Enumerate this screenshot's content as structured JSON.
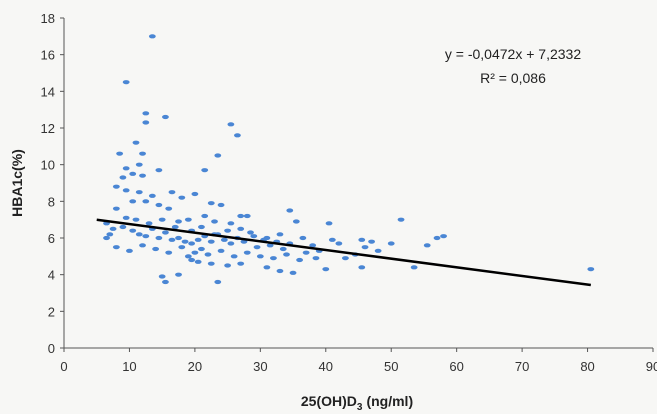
{
  "chart_data": {
    "type": "scatter",
    "title": "",
    "xlabel": "25(OH)D",
    "xlabel_subscript": "3",
    "xlabel_unit": "(ng/ml)",
    "ylabel": "HBA1c(%)",
    "xlim": [
      0,
      90
    ],
    "ylim": [
      0,
      18
    ],
    "x_ticks": [
      0,
      10,
      20,
      30,
      40,
      50,
      60,
      70,
      80,
      90
    ],
    "y_ticks": [
      0,
      2,
      4,
      6,
      8,
      10,
      12,
      14,
      16,
      18
    ],
    "grid": false,
    "legend": "none",
    "colors": {
      "points": "#4a86d4",
      "trendline": "#000000"
    },
    "annotations": {
      "equation": "y = -0,0472x + 7,2332",
      "r2": "R² = 0,086"
    },
    "trendline": {
      "slope": -0.0472,
      "intercept": 7.2332,
      "x_range": [
        5,
        80.5
      ]
    },
    "points": [
      [
        13.5,
        17.0
      ],
      [
        9.5,
        14.5
      ],
      [
        12.5,
        12.8
      ],
      [
        15.5,
        12.6
      ],
      [
        12.5,
        12.3
      ],
      [
        25.5,
        12.2
      ],
      [
        26.5,
        11.6
      ],
      [
        11.0,
        11.2
      ],
      [
        12.0,
        10.6
      ],
      [
        8.5,
        10.6
      ],
      [
        23.5,
        10.5
      ],
      [
        11.5,
        10.0
      ],
      [
        9.5,
        9.8
      ],
      [
        14.5,
        9.7
      ],
      [
        21.5,
        9.7
      ],
      [
        10.5,
        9.5
      ],
      [
        9.0,
        9.3
      ],
      [
        12.0,
        9.4
      ],
      [
        8.0,
        8.8
      ],
      [
        9.5,
        8.6
      ],
      [
        11.5,
        8.5
      ],
      [
        13.5,
        8.3
      ],
      [
        16.5,
        8.5
      ],
      [
        20.0,
        8.4
      ],
      [
        18.0,
        8.2
      ],
      [
        10.5,
        8.0
      ],
      [
        12.5,
        8.0
      ],
      [
        14.5,
        7.8
      ],
      [
        22.5,
        7.9
      ],
      [
        24.0,
        7.8
      ],
      [
        16.0,
        7.6
      ],
      [
        8.0,
        7.6
      ],
      [
        34.5,
        7.5
      ],
      [
        27.0,
        7.2
      ],
      [
        28.0,
        7.2
      ],
      [
        21.5,
        7.2
      ],
      [
        19.0,
        7.0
      ],
      [
        17.5,
        6.9
      ],
      [
        23.0,
        6.9
      ],
      [
        25.5,
        6.8
      ],
      [
        40.5,
        6.8
      ],
      [
        45.5,
        5.9
      ],
      [
        35.5,
        6.9
      ],
      [
        51.5,
        7.0
      ],
      [
        57.0,
        6.0
      ],
      [
        58.0,
        6.1
      ],
      [
        6.5,
        6.8
      ],
      [
        7.5,
        6.5
      ],
      [
        9.0,
        6.6
      ],
      [
        10.5,
        6.4
      ],
      [
        11.5,
        6.2
      ],
      [
        12.5,
        6.1
      ],
      [
        13.5,
        6.5
      ],
      [
        14.5,
        6.0
      ],
      [
        15.5,
        6.3
      ],
      [
        16.5,
        5.9
      ],
      [
        17.5,
        6.0
      ],
      [
        18.5,
        5.8
      ],
      [
        19.5,
        5.7
      ],
      [
        20.5,
        5.9
      ],
      [
        21.5,
        6.1
      ],
      [
        22.5,
        5.8
      ],
      [
        23.5,
        6.2
      ],
      [
        24.5,
        5.9
      ],
      [
        25.5,
        5.7
      ],
      [
        26.5,
        6.0
      ],
      [
        27.5,
        5.8
      ],
      [
        28.5,
        6.3
      ],
      [
        29.5,
        5.5
      ],
      [
        30.5,
        5.9
      ],
      [
        31.5,
        5.6
      ],
      [
        32.5,
        5.8
      ],
      [
        33.5,
        5.4
      ],
      [
        34.5,
        5.7
      ],
      [
        36.5,
        6.0
      ],
      [
        38.0,
        5.6
      ],
      [
        39.0,
        5.3
      ],
      [
        41.0,
        5.9
      ],
      [
        42.0,
        5.7
      ],
      [
        46.0,
        5.5
      ],
      [
        48.0,
        5.3
      ],
      [
        50.0,
        5.7
      ],
      [
        8.0,
        5.5
      ],
      [
        10.0,
        5.3
      ],
      [
        12.0,
        5.6
      ],
      [
        14.0,
        5.4
      ],
      [
        16.0,
        5.2
      ],
      [
        18.0,
        5.5
      ],
      [
        19.0,
        5.0
      ],
      [
        20.0,
        5.2
      ],
      [
        21.0,
        5.4
      ],
      [
        22.0,
        5.1
      ],
      [
        24.0,
        5.3
      ],
      [
        26.0,
        5.0
      ],
      [
        28.0,
        5.2
      ],
      [
        30.0,
        5.0
      ],
      [
        32.0,
        4.9
      ],
      [
        34.0,
        5.1
      ],
      [
        36.0,
        4.8
      ],
      [
        38.5,
        4.9
      ],
      [
        43.0,
        4.9
      ],
      [
        19.5,
        4.8
      ],
      [
        20.5,
        4.7
      ],
      [
        22.5,
        4.6
      ],
      [
        25.0,
        4.5
      ],
      [
        27.0,
        4.6
      ],
      [
        31.0,
        4.4
      ],
      [
        33.0,
        4.2
      ],
      [
        35.0,
        4.1
      ],
      [
        40.0,
        4.3
      ],
      [
        45.5,
        4.4
      ],
      [
        53.5,
        4.4
      ],
      [
        80.5,
        4.3
      ],
      [
        15.0,
        3.9
      ],
      [
        15.5,
        3.6
      ],
      [
        17.5,
        4.0
      ],
      [
        23.5,
        3.6
      ],
      [
        13.0,
        6.8
      ],
      [
        11.0,
        7.0
      ],
      [
        9.5,
        7.1
      ],
      [
        7.0,
        6.2
      ],
      [
        6.5,
        6.0
      ],
      [
        15.0,
        7.0
      ],
      [
        17.0,
        6.6
      ],
      [
        19.5,
        6.4
      ],
      [
        21.0,
        6.6
      ],
      [
        23.0,
        6.2
      ],
      [
        25.0,
        6.4
      ],
      [
        27.0,
        6.5
      ],
      [
        29.0,
        6.1
      ],
      [
        31.0,
        6.0
      ],
      [
        33.0,
        6.2
      ],
      [
        37.0,
        5.2
      ],
      [
        44.5,
        5.1
      ],
      [
        47.0,
        5.8
      ],
      [
        55.5,
        5.6
      ]
    ]
  }
}
